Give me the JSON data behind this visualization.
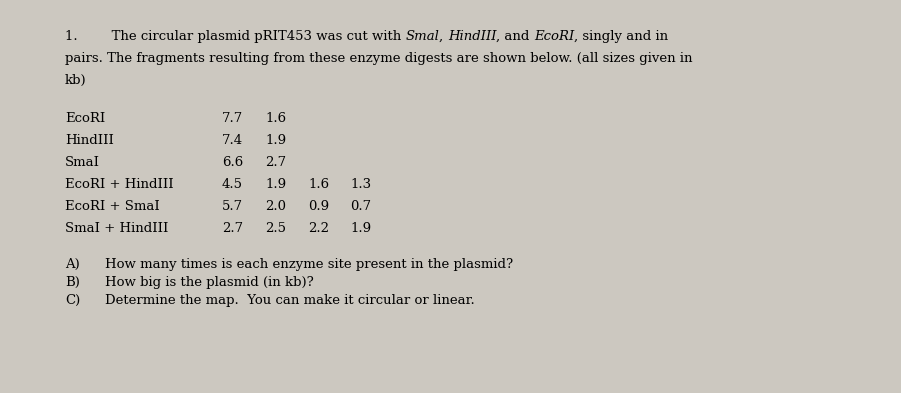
{
  "background_color": "#ccc8c0",
  "fontsize": 9.5,
  "title_parts_line1": [
    [
      "1.        The circular plasmid pRIT453 was cut with ",
      false
    ],
    [
      "Smal",
      true
    ],
    [
      ", ",
      false
    ],
    [
      "HindIII",
      true
    ],
    [
      ", and ",
      false
    ],
    [
      "EcoRI",
      true
    ],
    [
      ", singly and in",
      false
    ]
  ],
  "title_line2": "pairs. The fragments resulting from these enzyme digests are shown below. (all sizes given in",
  "title_line3": "kb)",
  "enzyme_labels": [
    "EcoRI",
    "HindIII",
    "SmaI",
    "EcoRI + HindIII",
    "EcoRI + SmaI",
    "SmaI + HindIII"
  ],
  "enzyme_data": [
    [
      "7.7",
      "1.6",
      "",
      ""
    ],
    [
      "7.4",
      "1.9",
      "",
      ""
    ],
    [
      "6.6",
      "2.7",
      "",
      ""
    ],
    [
      "4.5",
      "1.9",
      "1.6",
      "1.3"
    ],
    [
      "5.7",
      "2.0",
      "0.9",
      "0.7"
    ],
    [
      "2.7",
      "2.5",
      "2.2",
      "1.9"
    ]
  ],
  "questions": [
    [
      "A)",
      "How many times is each enzyme site present in the plasmid?"
    ],
    [
      "B)",
      "How big is the plasmid (in kb)?"
    ],
    [
      "C)",
      "Determine the map.  You can make it circular or linear."
    ]
  ]
}
